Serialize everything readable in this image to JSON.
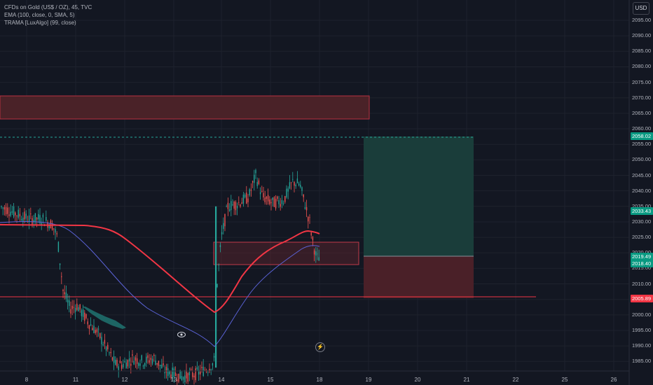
{
  "header": {
    "title": "CFDs on Gold (US$ / OZ), 45, TVC",
    "ema": "EMA (100, close, 0, SMA, 5)",
    "trama": "TRAMA [LuxAlgo] (99, close)"
  },
  "currency_button": "USD",
  "price_axis": {
    "ticks": [
      "2095.00",
      "2090.00",
      "2085.00",
      "2080.00",
      "2075.00",
      "2070.00",
      "2065.00",
      "2060.00",
      "2055.00",
      "2050.00",
      "2045.00",
      "2040.00",
      "2035.00",
      "2030.00",
      "2025.00",
      "2020.00",
      "2015.00",
      "2010.00",
      "2005.00",
      "2000.00",
      "1995.00",
      "1990.00",
      "1985.00"
    ],
    "badges": {
      "target": "2058.02",
      "current": "2033.43",
      "entry": "2019.49",
      "last": "2018.40",
      "stop": "2005.89"
    }
  },
  "time_axis": {
    "labels": [
      "8",
      "11",
      "12",
      "13",
      "14",
      "15",
      "18",
      "19",
      "20",
      "21",
      "22",
      "25",
      "26"
    ]
  },
  "colors": {
    "background": "#131722",
    "ema": "#5b63d8",
    "trama": "#f23645",
    "bull": "#26a69a",
    "bear": "#ef5350",
    "target_zone": "#1a3d3a",
    "stop_zone": "#4a2028",
    "supply_zone": "#4a2228",
    "badge_green": "#089981",
    "badge_red": "#f23645"
  },
  "icons": {
    "eye": "eye-icon",
    "flash": "lightning-icon"
  }
}
